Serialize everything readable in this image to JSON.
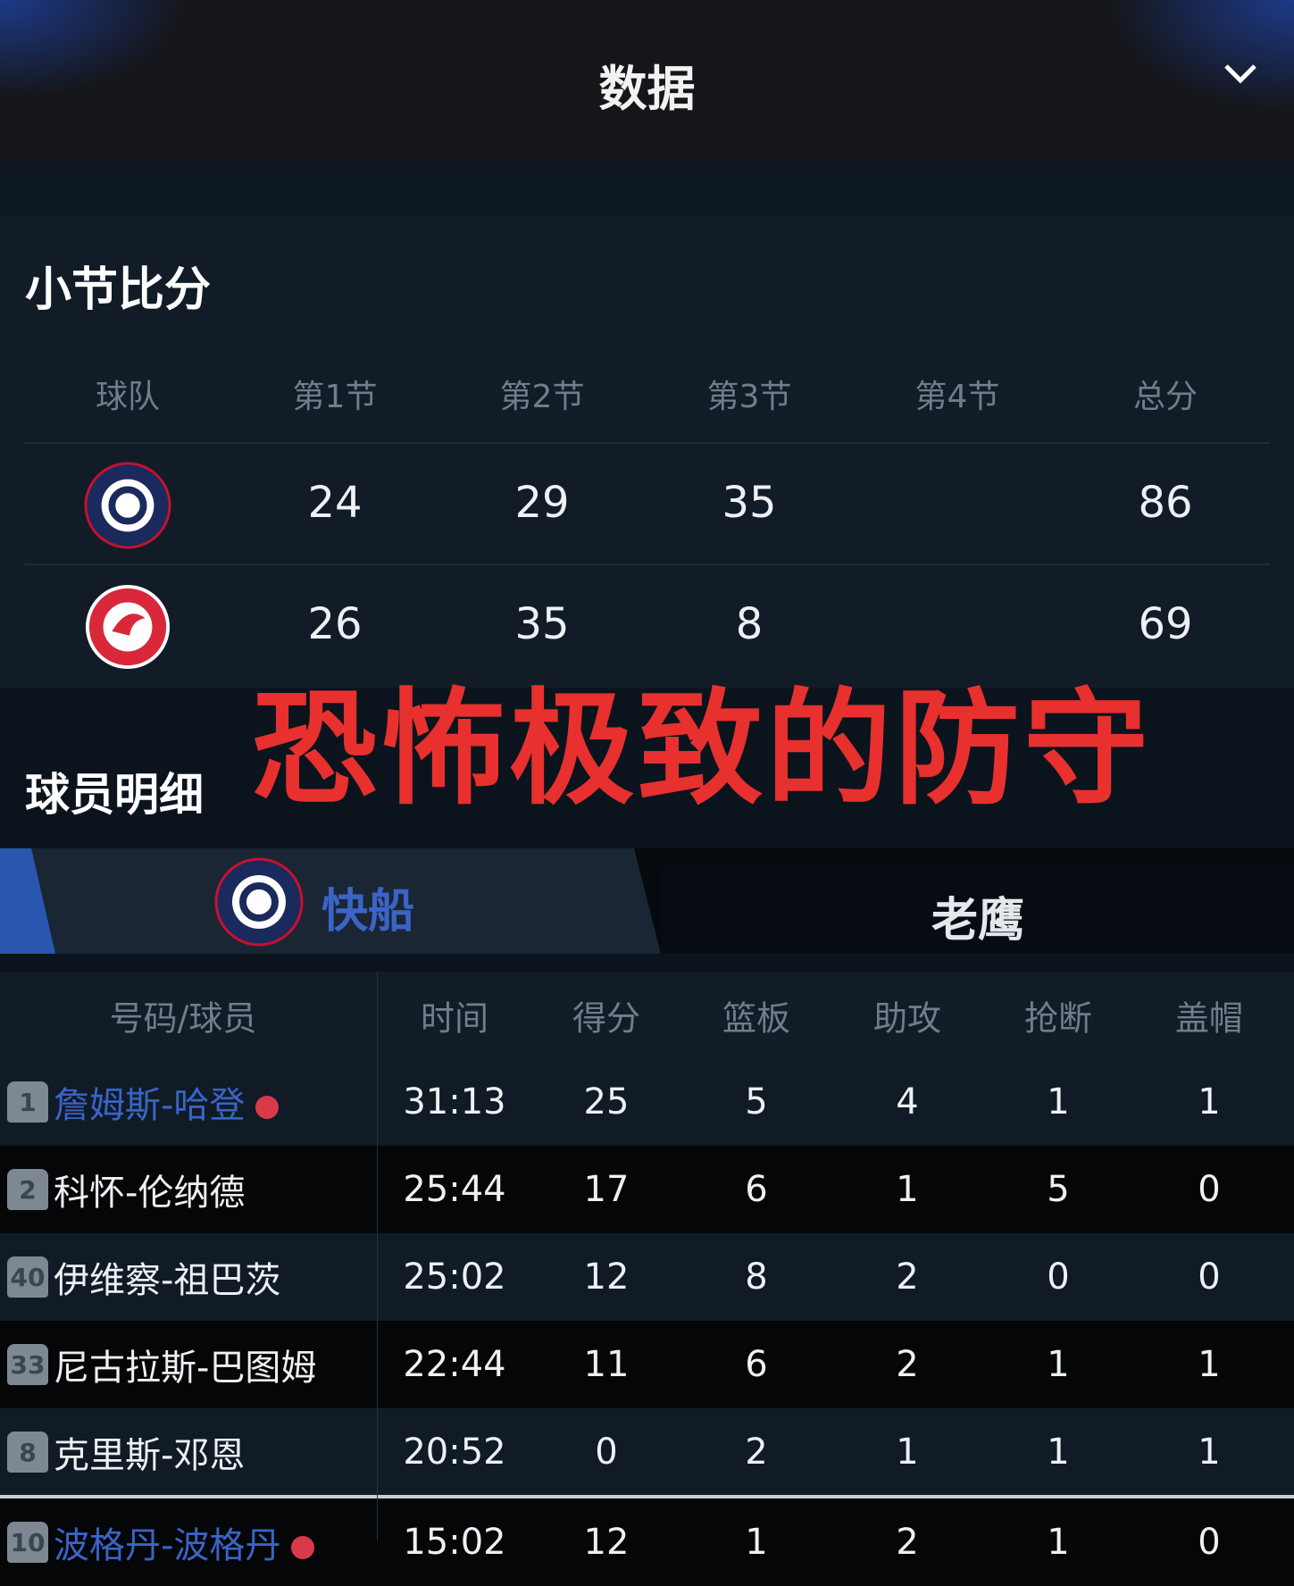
{
  "header": {
    "title": "数据",
    "collapse_icon": "chevron-down-icon"
  },
  "quarters": {
    "title": "小节比分",
    "columns": [
      "球队",
      "第1节",
      "第2节",
      "第3节",
      "第4节",
      "总分"
    ],
    "rows": [
      {
        "team": "Los Angeles Clippers",
        "logo": "clippers-logo",
        "scores": [
          "24",
          "29",
          "35",
          "",
          "86"
        ]
      },
      {
        "team": "Atlanta Hawks",
        "logo": "hawks-logo",
        "scores": [
          "26",
          "35",
          "8",
          "",
          "69"
        ]
      }
    ]
  },
  "overlay_text": "恐怖极致的防守",
  "players": {
    "title": "球员明细",
    "tabs": [
      {
        "label": "快船",
        "active": true
      },
      {
        "label": "老鹰",
        "active": false
      }
    ],
    "columns": [
      "号码/球员",
      "时间",
      "得分",
      "篮板",
      "助攻",
      "抢断",
      "盖帽"
    ],
    "rows": [
      {
        "number": "1",
        "name": "詹姆斯-哈登",
        "highlight": true,
        "mvp": true,
        "stats": [
          "31:13",
          "25",
          "5",
          "4",
          "1",
          "1"
        ]
      },
      {
        "number": "2",
        "name": "科怀-伦纳德",
        "highlight": false,
        "mvp": false,
        "stats": [
          "25:44",
          "17",
          "6",
          "1",
          "5",
          "0"
        ]
      },
      {
        "number": "40",
        "name": "伊维察-祖巴茨",
        "highlight": false,
        "mvp": false,
        "stats": [
          "25:02",
          "12",
          "8",
          "2",
          "0",
          "0"
        ]
      },
      {
        "number": "33",
        "name": "尼古拉斯-巴图姆",
        "highlight": false,
        "mvp": false,
        "stats": [
          "22:44",
          "11",
          "6",
          "2",
          "1",
          "1"
        ]
      },
      {
        "number": "8",
        "name": "克里斯-邓恩",
        "highlight": false,
        "mvp": false,
        "stats": [
          "20:52",
          "0",
          "2",
          "1",
          "1",
          "1"
        ]
      },
      {
        "number": "10",
        "name": "波格丹-波格丹",
        "highlight": true,
        "mvp": true,
        "stats": [
          "15:02",
          "12",
          "1",
          "2",
          "1",
          "0"
        ]
      }
    ]
  },
  "colors": {
    "accent_blue": "#3a64c8",
    "overlay_red": "#e8302f",
    "hawks_red": "#d8283a",
    "clippers_navy": "#1b2a5c"
  }
}
